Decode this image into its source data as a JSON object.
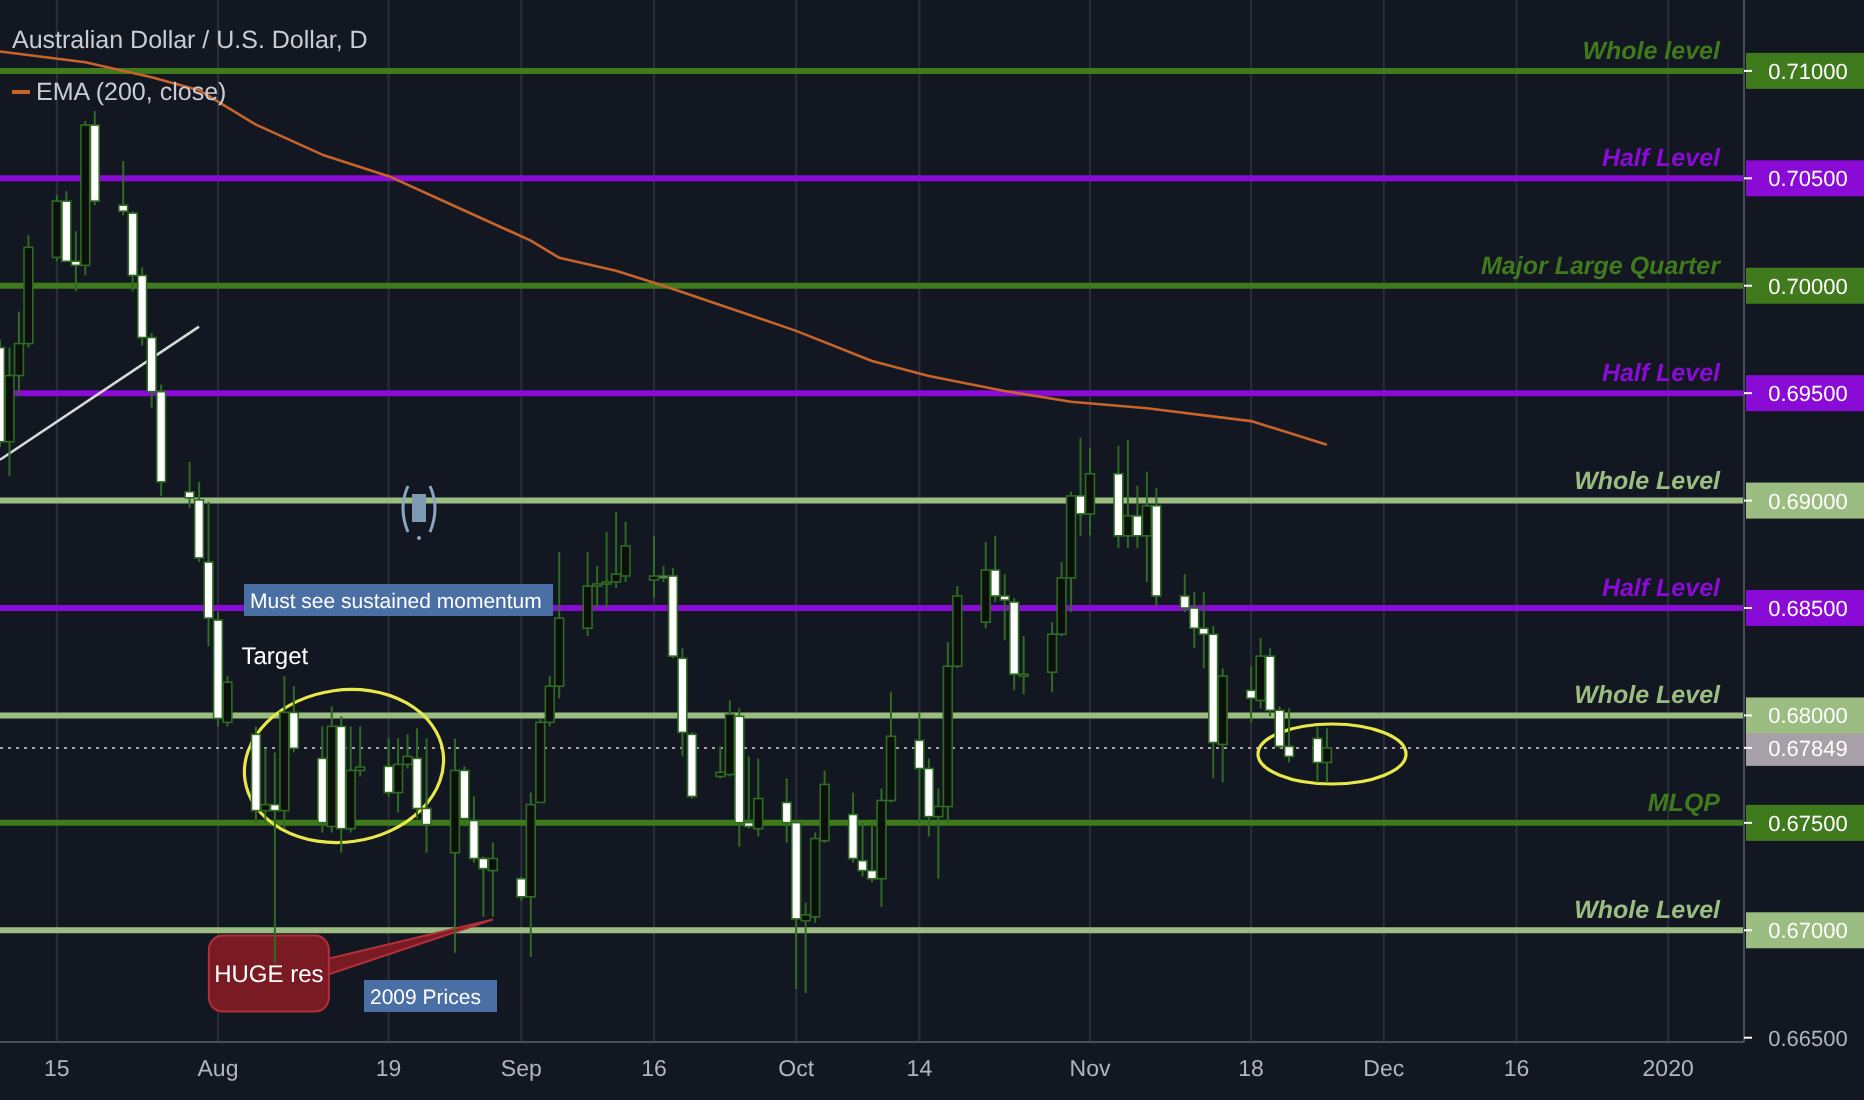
{
  "chart_data": {
    "type": "candlestick",
    "title": "Australian Dollar / U.S. Dollar, D",
    "x": [
      "2019-07-09",
      "2019-07-10",
      "2019-07-11",
      "2019-07-12",
      "2019-07-15",
      "2019-07-16",
      "2019-07-17",
      "2019-07-18",
      "2019-07-19",
      "2019-07-22",
      "2019-07-23",
      "2019-07-24",
      "2019-07-25",
      "2019-07-26",
      "2019-07-29",
      "2019-07-30",
      "2019-07-31",
      "2019-08-01",
      "2019-08-02",
      "2019-08-05",
      "2019-08-06",
      "2019-08-07",
      "2019-08-08",
      "2019-08-09",
      "2019-08-12",
      "2019-08-13",
      "2019-08-14",
      "2019-08-15",
      "2019-08-16",
      "2019-08-19",
      "2019-08-20",
      "2019-08-21",
      "2019-08-22",
      "2019-08-23",
      "2019-08-26",
      "2019-08-27",
      "2019-08-28",
      "2019-08-29",
      "2019-08-30",
      "2019-09-02",
      "2019-09-03",
      "2019-09-04",
      "2019-09-05",
      "2019-09-06",
      "2019-09-09",
      "2019-09-10",
      "2019-09-11",
      "2019-09-12",
      "2019-09-13",
      "2019-09-16",
      "2019-09-17",
      "2019-09-18",
      "2019-09-19",
      "2019-09-20",
      "2019-09-23",
      "2019-09-24",
      "2019-09-25",
      "2019-09-26",
      "2019-09-27",
      "2019-09-30",
      "2019-10-01",
      "2019-10-02",
      "2019-10-03",
      "2019-10-04",
      "2019-10-07",
      "2019-10-08",
      "2019-10-09",
      "2019-10-10",
      "2019-10-11",
      "2019-10-14",
      "2019-10-15",
      "2019-10-16",
      "2019-10-17",
      "2019-10-18",
      "2019-10-21",
      "2019-10-22",
      "2019-10-23",
      "2019-10-24",
      "2019-10-25",
      "2019-10-28",
      "2019-10-29",
      "2019-10-30",
      "2019-10-31",
      "2019-11-01",
      "2019-11-04",
      "2019-11-05",
      "2019-11-06",
      "2019-11-07",
      "2019-11-08",
      "2019-11-11",
      "2019-11-12",
      "2019-11-13",
      "2019-11-14",
      "2019-11-15",
      "2019-11-18",
      "2019-11-19",
      "2019-11-20",
      "2019-11-21",
      "2019-11-22",
      "2019-11-25",
      "2019-11-26"
    ],
    "ohlc": [
      [
        0.69712,
        0.6975,
        0.6925,
        0.69274
      ],
      [
        0.69274,
        0.69712,
        0.69115,
        0.69582
      ],
      [
        0.69582,
        0.6988,
        0.69489,
        0.69731
      ],
      [
        0.69731,
        0.70235,
        0.69712,
        0.70179
      ],
      [
        0.70132,
        0.70422,
        0.70114,
        0.70394
      ],
      [
        0.70394,
        0.7044,
        0.70114,
        0.70114
      ],
      [
        0.70114,
        0.70254,
        0.69974,
        0.70095
      ],
      [
        0.70095,
        0.70767,
        0.70048,
        0.70748
      ],
      [
        0.70748,
        0.70813,
        0.70375,
        0.70394
      ],
      [
        0.70375,
        0.7058,
        0.70328,
        0.70347
      ],
      [
        0.70338,
        0.70347,
        0.69974,
        0.70048
      ],
      [
        0.70048,
        0.70086,
        0.69722,
        0.69759
      ],
      [
        0.69759,
        0.6978,
        0.69432,
        0.69507
      ],
      [
        0.69507,
        0.6954,
        0.69022,
        0.69087
      ],
      [
        0.69041,
        0.69181,
        0.68966,
        0.69013
      ],
      [
        0.69003,
        0.69087,
        0.68714,
        0.68733
      ],
      [
        0.68714,
        0.68994,
        0.68322,
        0.68453
      ],
      [
        0.68444,
        0.68481,
        0.67949,
        0.67986
      ],
      [
        0.67968,
        0.68183,
        0.67949,
        0.68155
      ],
      [
        0.67912,
        0.67949,
        0.67501,
        0.67557
      ],
      [
        0.67557,
        0.67847,
        0.67501,
        0.67585
      ],
      [
        0.67585,
        0.67828,
        0.66848,
        0.67557
      ],
      [
        0.67557,
        0.68183,
        0.67473,
        0.68014
      ],
      [
        0.68014,
        0.68136,
        0.67828,
        0.67847
      ],
      [
        0.678,
        0.67949,
        0.67455,
        0.67501
      ],
      [
        0.67483,
        0.68042,
        0.67455,
        0.67949
      ],
      [
        0.67949,
        0.67996,
        0.67361,
        0.67473
      ],
      [
        0.67473,
        0.67949,
        0.67455,
        0.67744
      ],
      [
        0.67744,
        0.67949,
        0.67716,
        0.6776
      ],
      [
        0.67763,
        0.67893,
        0.67623,
        0.67641
      ],
      [
        0.67641,
        0.67893,
        0.67548,
        0.67772
      ],
      [
        0.67772,
        0.67912,
        0.67753,
        0.67809
      ],
      [
        0.678,
        0.6794,
        0.6752,
        0.67567
      ],
      [
        0.67567,
        0.67893,
        0.67361,
        0.67492
      ],
      [
        0.67361,
        0.67893,
        0.66895,
        0.67744
      ],
      [
        0.67744,
        0.67763,
        0.67483,
        0.6752
      ],
      [
        0.67511,
        0.67623,
        0.67315,
        0.67334
      ],
      [
        0.67334,
        0.67343,
        0.67063,
        0.67287
      ],
      [
        0.67278,
        0.67408,
        0.67063,
        0.67334
      ],
      [
        0.6724,
        0.6725,
        0.67138,
        0.67156
      ],
      [
        0.67156,
        0.67641,
        0.66876,
        0.67585
      ],
      [
        0.67595,
        0.67986,
        0.67595,
        0.67968
      ],
      [
        0.67968,
        0.68183,
        0.67949,
        0.68136
      ],
      [
        0.68136,
        0.68761,
        0.6808,
        0.68453
      ],
      [
        0.68406,
        0.68761,
        0.68369,
        0.68602
      ],
      [
        0.68602,
        0.68696,
        0.685,
        0.68612
      ],
      [
        0.68612,
        0.68854,
        0.685,
        0.68621
      ],
      [
        0.68621,
        0.68948,
        0.68593,
        0.68658
      ],
      [
        0.68649,
        0.68901,
        0.68621,
        0.68789
      ],
      [
        0.6863,
        0.68836,
        0.68547,
        0.68649
      ],
      [
        0.68649,
        0.68696,
        0.68621,
        0.6864
      ],
      [
        0.68649,
        0.68686,
        0.68266,
        0.68276
      ],
      [
        0.68266,
        0.68313,
        0.67809,
        0.67921
      ],
      [
        0.67912,
        0.67921,
        0.67613,
        0.67623
      ],
      [
        0.67716,
        0.67856,
        0.67707,
        0.67735
      ],
      [
        0.67725,
        0.6807,
        0.67716,
        0.68005
      ],
      [
        0.67996,
        0.68033,
        0.67389,
        0.67501
      ],
      [
        0.67501,
        0.67809,
        0.67473,
        0.67483
      ],
      [
        0.67473,
        0.678,
        0.67436,
        0.67613
      ],
      [
        0.67595,
        0.67707,
        0.67408,
        0.67501
      ],
      [
        0.67501,
        0.6751,
        0.66727,
        0.67053
      ],
      [
        0.67044,
        0.67128,
        0.66708,
        0.67072
      ],
      [
        0.67063,
        0.67455,
        0.67035,
        0.67427
      ],
      [
        0.67417,
        0.67744,
        0.67408,
        0.67679
      ],
      [
        0.67539,
        0.67641,
        0.67315,
        0.67334
      ],
      [
        0.67324,
        0.67501,
        0.6725,
        0.67278
      ],
      [
        0.67278,
        0.67501,
        0.67222,
        0.6724
      ],
      [
        0.6724,
        0.6766,
        0.67109,
        0.67604
      ],
      [
        0.67604,
        0.68108,
        0.67595,
        0.67903
      ],
      [
        0.67884,
        0.68014,
        0.67501,
        0.67753
      ],
      [
        0.67753,
        0.678,
        0.67436,
        0.67529
      ],
      [
        0.67529,
        0.6766,
        0.6724,
        0.67576
      ],
      [
        0.67576,
        0.68341,
        0.67501,
        0.68229
      ],
      [
        0.68229,
        0.68602,
        0.6822,
        0.68556
      ],
      [
        0.68434,
        0.68808,
        0.68406,
        0.68677
      ],
      [
        0.68677,
        0.68836,
        0.68528,
        0.68556
      ],
      [
        0.68556,
        0.68658,
        0.6835,
        0.68537
      ],
      [
        0.68528,
        0.68547,
        0.68117,
        0.68192
      ],
      [
        0.68183,
        0.68369,
        0.68098,
        0.68192
      ],
      [
        0.68201,
        0.68434,
        0.68108,
        0.68378
      ],
      [
        0.68378,
        0.68714,
        0.68369,
        0.6864
      ],
      [
        0.6864,
        0.69041,
        0.68481,
        0.69022
      ],
      [
        0.69022,
        0.69293,
        0.68836,
        0.68938
      ],
      [
        0.68938,
        0.69246,
        0.68836,
        0.69125
      ],
      [
        0.69125,
        0.69255,
        0.68779,
        0.68836
      ],
      [
        0.68836,
        0.69283,
        0.68779,
        0.68929
      ],
      [
        0.68929,
        0.69069,
        0.68779,
        0.68836
      ],
      [
        0.68836,
        0.69134,
        0.68621,
        0.68976
      ],
      [
        0.68976,
        0.69059,
        0.68509,
        0.68556
      ],
      [
        0.68556,
        0.68658,
        0.68481,
        0.685
      ],
      [
        0.685,
        0.68574,
        0.68313,
        0.68406
      ],
      [
        0.68406,
        0.68574,
        0.6822,
        0.68378
      ],
      [
        0.68378,
        0.68416,
        0.67707,
        0.67874
      ],
      [
        0.67865,
        0.6822,
        0.67688,
        0.68183
      ],
      [
        0.68117,
        0.68229,
        0.67968,
        0.6808
      ],
      [
        0.6807,
        0.6836,
        0.68033,
        0.68276
      ],
      [
        0.68276,
        0.68313,
        0.67996,
        0.68024
      ],
      [
        0.68024,
        0.68042,
        0.67847,
        0.67856
      ],
      [
        0.67856,
        0.68033,
        0.67781,
        0.67809
      ],
      [
        0.67893,
        0.67949,
        0.67688,
        0.67781
      ],
      [
        0.67781,
        0.6794,
        0.67688,
        0.67849
      ]
    ],
    "series": [
      {
        "name": "EMA (200, close)",
        "type": "line",
        "color": "#c8642a",
        "x": [
          "2019-07-09",
          "2019-07-18",
          "2019-07-25",
          "2019-07-30",
          "2019-08-05",
          "2019-08-12",
          "2019-08-19",
          "2019-08-26",
          "2019-09-03",
          "2019-09-06",
          "2019-09-12",
          "2019-09-17",
          "2019-10-01",
          "2019-10-09",
          "2019-10-15",
          "2019-10-23",
          "2019-10-30",
          "2019-11-07",
          "2019-11-18",
          "2019-11-26"
        ],
        "values": [
          0.7109,
          0.7104,
          0.7097,
          0.7091,
          0.7075,
          0.7061,
          0.7051,
          0.7037,
          0.7021,
          0.7013,
          0.7007,
          0.7,
          0.6979,
          0.6965,
          0.6958,
          0.6951,
          0.6946,
          0.6943,
          0.6937,
          0.6926
        ]
      },
      {
        "type": "line",
        "color": "#d9d9d9",
        "x": [
          "2019-07-09",
          "2019-07-30"
        ],
        "values": [
          0.6919,
          0.6981
        ]
      }
    ],
    "xlim": [
      "2019-07-09",
      "2020-01-09"
    ],
    "xticks": [
      {
        "value": "2019-07-15",
        "label": "15"
      },
      {
        "value": "2019-08-01",
        "label": "Aug"
      },
      {
        "value": "2019-08-19",
        "label": "19"
      },
      {
        "value": "2019-09-02",
        "label": "Sep"
      },
      {
        "value": "2019-09-16",
        "label": "16"
      },
      {
        "value": "2019-10-01",
        "label": "Oct"
      },
      {
        "value": "2019-10-14",
        "label": "14"
      },
      {
        "value": "2019-11-01",
        "label": "Nov"
      },
      {
        "value": "2019-11-18",
        "label": "18"
      },
      {
        "value": "2019-12-02",
        "label": "Dec"
      },
      {
        "value": "2019-12-16",
        "label": "16"
      },
      {
        "value": "2020-01-01",
        "label": "2020"
      }
    ],
    "ylim": [
      0.6648,
      0.7133
    ],
    "yticks": [
      {
        "value": 0.665,
        "label": "0.66500"
      },
      {
        "value": 0.67,
        "label": "0.67000"
      },
      {
        "value": 0.675,
        "label": "0.67500"
      },
      {
        "value": 0.67849,
        "label": "0.67849"
      },
      {
        "value": 0.68,
        "label": "0.68000"
      },
      {
        "value": 0.685,
        "label": "0.68500"
      },
      {
        "value": 0.69,
        "label": "0.69000"
      },
      {
        "value": 0.695,
        "label": "0.69500"
      },
      {
        "value": 0.7,
        "label": "0.70000"
      },
      {
        "value": 0.705,
        "label": "0.70500"
      },
      {
        "value": 0.71,
        "label": "0.71000"
      }
    ],
    "ref_lines": [
      {
        "axis": "y",
        "value": 0.71,
        "label": "Whole level",
        "color": "#3f7a1c"
      },
      {
        "axis": "y",
        "value": 0.705,
        "label": "Half Level",
        "color": "#8a0ad6"
      },
      {
        "axis": "y",
        "value": 0.7,
        "label": "Major Large Quarter",
        "color": "#3f7a1c"
      },
      {
        "axis": "y",
        "value": 0.695,
        "label": "Half Level",
        "color": "#8a0ad6"
      },
      {
        "axis": "y",
        "value": 0.69,
        "label": "Whole Level",
        "color": "#9bbd82"
      },
      {
        "axis": "y",
        "value": 0.685,
        "label": "Half Level",
        "color": "#8a0ad6"
      },
      {
        "axis": "y",
        "value": 0.68,
        "label": "Whole Level",
        "color": "#9bbd82"
      },
      {
        "axis": "y",
        "value": 0.67849,
        "color": "#a8a0a8",
        "line_style": "dotted"
      },
      {
        "axis": "y",
        "value": 0.675,
        "label": "MLQP",
        "color": "#3f7a1c"
      },
      {
        "axis": "y",
        "value": 0.67,
        "label": "Whole Level",
        "color": "#9bbd82"
      }
    ],
    "annotations": [
      {
        "text": "Target",
        "x": "2019-08-07",
        "y": 0.6827
      },
      "Must see sustained momentum",
      "2009 Prices",
      {
        "text": "HUGE res",
        "x": "2019-08-30",
        "y": 0.6705
      }
    ],
    "grid": "x",
    "legend": "top left"
  }
}
